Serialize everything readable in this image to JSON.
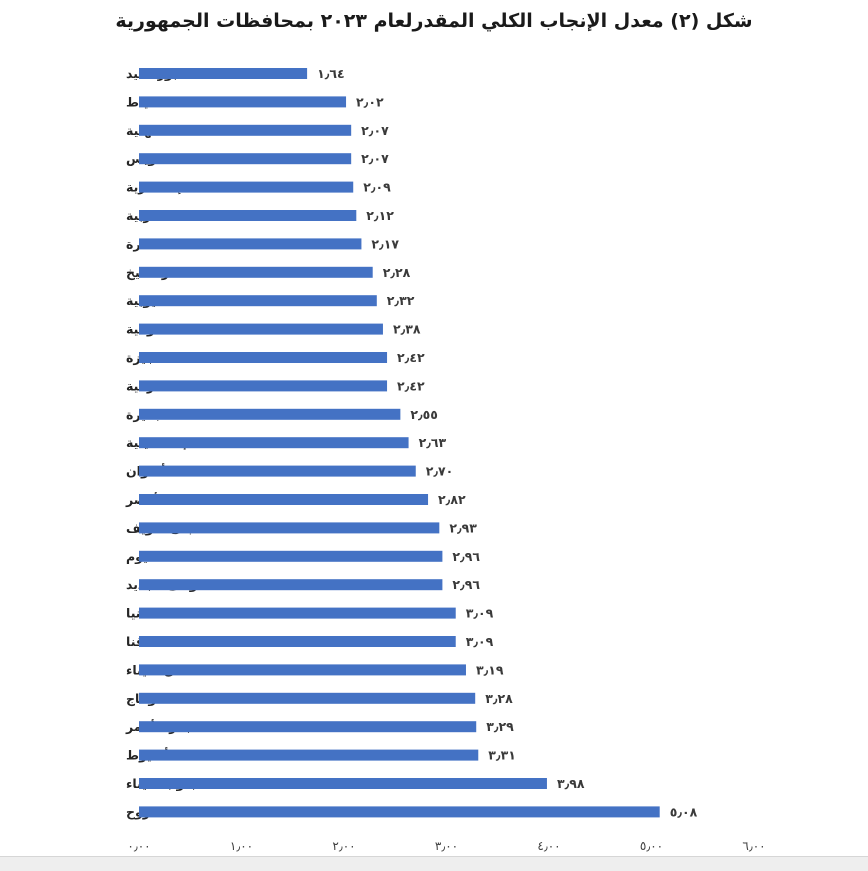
{
  "chart_data": {
    "type": "bar",
    "orientation": "horizontal",
    "title": "شكل (٢) معدل الإنجاب الكلي المقدرلعام ٢٠٢٣ بمحافظات الجمهورية",
    "categories": [
      "بورسعيد",
      "دمياط",
      "الدقهلية",
      "السويس",
      "الإسكندرية",
      "الغربية",
      "القاهرة",
      "كفرالشيخ",
      "القليوبية",
      "المنوفية",
      "الجيزة",
      "الشرقية",
      "البحيرة",
      "الإسماعيلية",
      "أسوان",
      "الأقصر",
      "بنى سويف",
      "الفيوم",
      "الوادى الجديد",
      "المنيا",
      "قنا",
      "شمال سيناء",
      "سوهاج",
      "البحر الأحمر",
      "أسيوط",
      "جنوب سيناء",
      "مطروح"
    ],
    "values": [
      1.64,
      2.02,
      2.07,
      2.07,
      2.09,
      2.12,
      2.17,
      2.28,
      2.32,
      2.38,
      2.42,
      2.42,
      2.55,
      2.63,
      2.7,
      2.82,
      2.93,
      2.96,
      2.96,
      3.09,
      3.09,
      3.19,
      3.28,
      3.29,
      3.31,
      3.98,
      5.08
    ],
    "value_labels": [
      "١٫٦٤",
      "٢٫٠٢",
      "٢٫٠٧",
      "٢٫٠٧",
      "٢٫٠٩",
      "٢٫١٢",
      "٢٫١٧",
      "٢٫٢٨",
      "٢٫٣٢",
      "٢٫٣٨",
      "٢٫٤٢",
      "٢٫٤٢",
      "٢٫٥٥",
      "٢٫٦٣",
      "٢٫٧٠",
      "٢٫٨٢",
      "٢٫٩٣",
      "٢٫٩٦",
      "٢٫٩٦",
      "٣٫٠٩",
      "٣٫٠٩",
      "٣٫١٩",
      "٣٫٢٨",
      "٣٫٢٩",
      "٣٫٣١",
      "٣٫٩٨",
      "٥٫٠٨"
    ],
    "xlim": [
      0,
      6
    ],
    "x_ticks": [
      0,
      1,
      2,
      3,
      4,
      5,
      6
    ],
    "x_tick_labels": [
      "٠٫٠٠",
      "١٫٠٠",
      "٢٫٠٠",
      "٣٫٠٠",
      "٤٫٠٠",
      "٥٫٠٠",
      "٦٫٠٠"
    ],
    "xlabel": "",
    "ylabel": "",
    "grid": false,
    "legend": "none",
    "bar_color": "#4472c4"
  }
}
